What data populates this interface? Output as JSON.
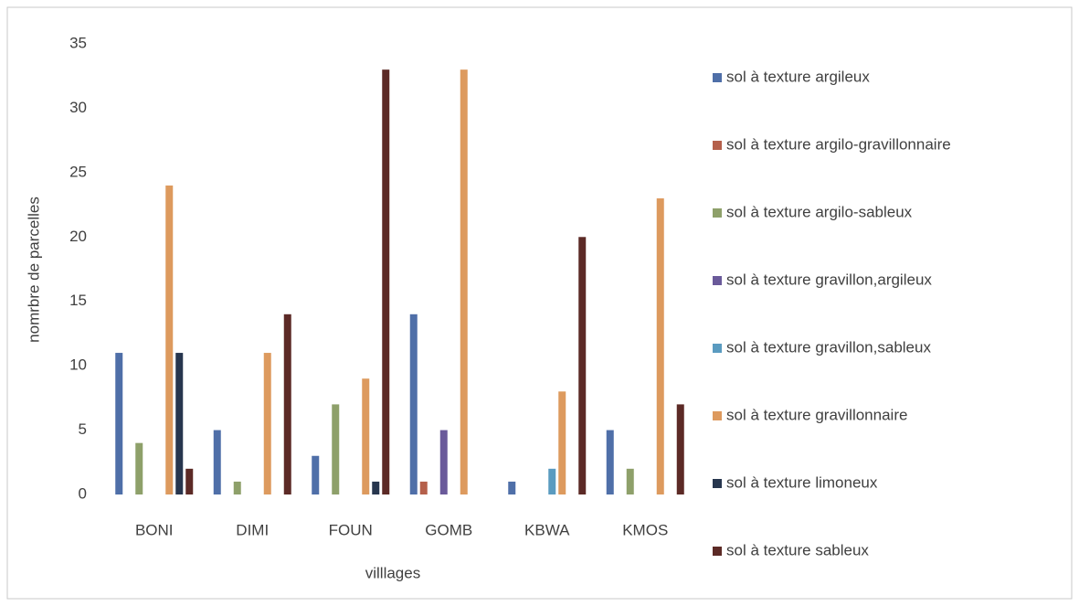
{
  "chart_data": {
    "type": "bar",
    "x_label": "villlages",
    "y_label": "nomrbre de parcelles",
    "categories": [
      "BONI",
      "DIMI",
      "FOUN",
      "GOMB",
      "KBWA",
      "KMOS"
    ],
    "series": [
      {
        "name": "sol à texture argileux",
        "color": "#4f6fa8",
        "values": [
          11,
          5,
          3,
          14,
          1,
          5
        ]
      },
      {
        "name": "sol à texture argilo-gravillonnaire",
        "color": "#b5604b",
        "values": [
          0,
          0,
          0,
          1,
          0,
          0
        ]
      },
      {
        "name": "sol à texture argilo-sableux",
        "color": "#8ea06a",
        "values": [
          4,
          1,
          7,
          0,
          0,
          2
        ]
      },
      {
        "name": "sol à texture gravillon,argileux",
        "color": "#6a5a9a",
        "values": [
          0,
          0,
          0,
          5,
          0,
          0
        ]
      },
      {
        "name": "sol à texture gravillon,sableux",
        "color": "#5a9bc0",
        "values": [
          0,
          0,
          0,
          0,
          2,
          0
        ]
      },
      {
        "name": "sol à texture gravillonnaire",
        "color": "#dd9a5e",
        "values": [
          24,
          11,
          9,
          33,
          8,
          23
        ]
      },
      {
        "name": "sol à texture limoneux",
        "color": "#27364e",
        "values": [
          11,
          0,
          1,
          0,
          0,
          0
        ]
      },
      {
        "name": "sol à texture sableux",
        "color": "#5c2a26",
        "values": [
          2,
          14,
          33,
          0,
          20,
          7
        ]
      }
    ],
    "ylim": [
      0,
      35
    ],
    "yticks": [
      0,
      5,
      10,
      15,
      20,
      25,
      30,
      35
    ],
    "legend": "right"
  }
}
